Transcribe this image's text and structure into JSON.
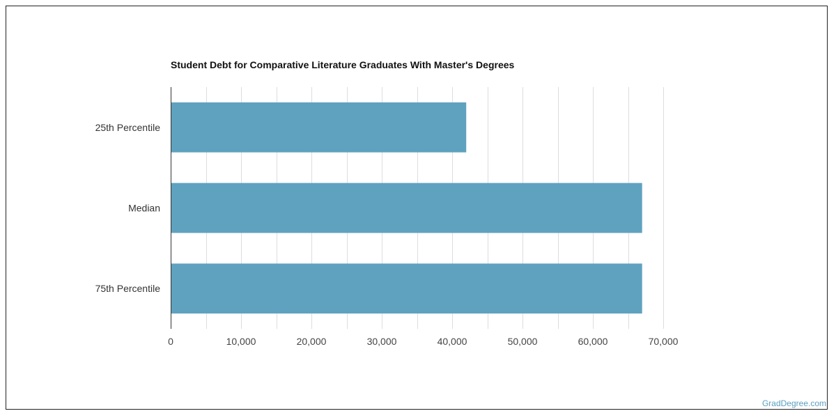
{
  "chart_data": {
    "type": "bar",
    "orientation": "horizontal",
    "title": "Student Debt for Comparative Literature Graduates With Master's Degrees",
    "categories": [
      "25th Percentile",
      "Median",
      "75th Percentile"
    ],
    "values": [
      42000,
      67000,
      67000
    ],
    "xlim": [
      0,
      70000
    ],
    "xticks": [
      0,
      10000,
      20000,
      30000,
      40000,
      50000,
      60000,
      70000
    ],
    "xtick_labels": [
      "0",
      "10,000",
      "20,000",
      "30,000",
      "40,000",
      "50,000",
      "60,000",
      "70,000"
    ],
    "xlabel": "",
    "ylabel": "",
    "grid": true,
    "bar_color": "#5fa2bf"
  },
  "source": "GradDegree.com"
}
